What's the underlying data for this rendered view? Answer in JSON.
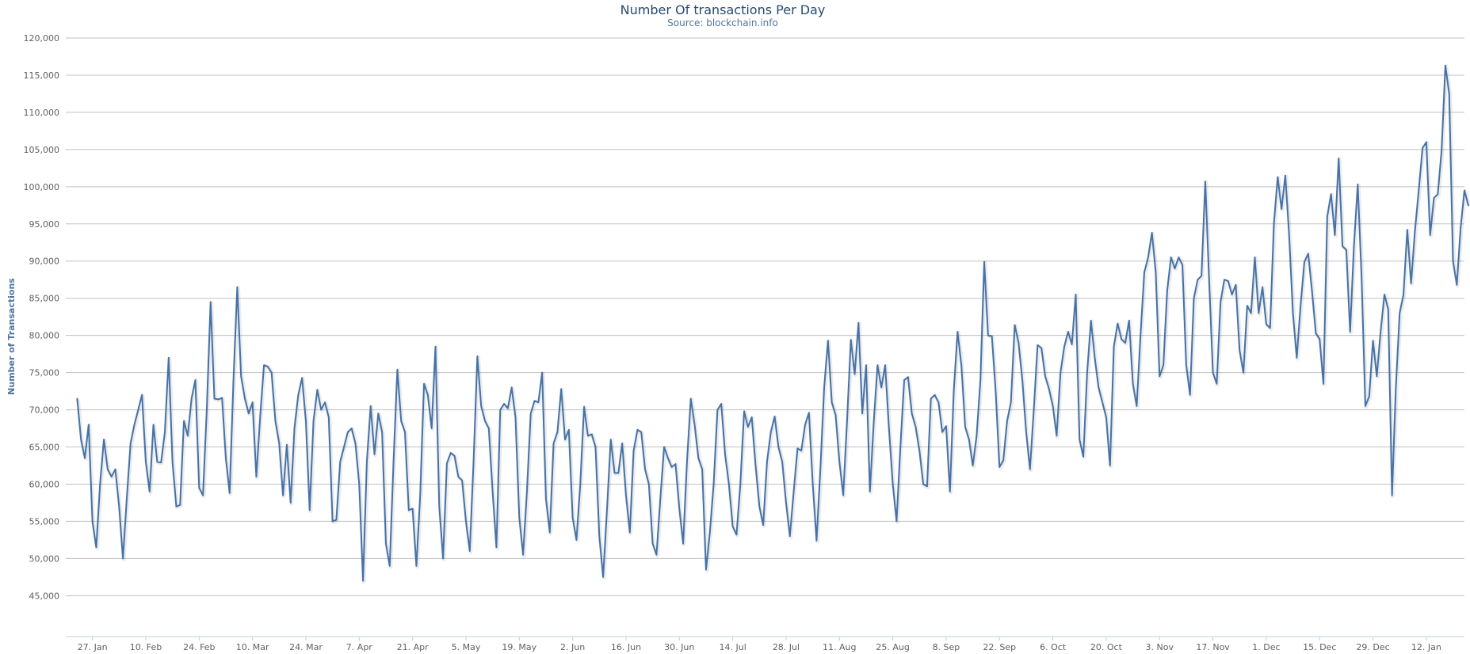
{
  "chart_data": {
    "type": "line",
    "title": "Number Of transactions Per Day",
    "subtitle": "Source: blockchain.info",
    "xlabel": "",
    "ylabel": "Number of Transactions",
    "ylim": [
      45000,
      120000
    ],
    "yticks": [
      45000,
      50000,
      55000,
      60000,
      65000,
      70000,
      75000,
      80000,
      85000,
      90000,
      95000,
      100000,
      105000,
      110000,
      115000,
      120000
    ],
    "ytick_labels": [
      "45,000",
      "50,000",
      "55,000",
      "60,000",
      "65,000",
      "70,000",
      "75,000",
      "80,000",
      "85,000",
      "90,000",
      "95,000",
      "100,000",
      "105,000",
      "110,000",
      "115,000",
      "120,000"
    ],
    "xlim": [
      "2013-01-20",
      "2014-01-22"
    ],
    "xticks": [
      {
        "label": "27. Jan",
        "date": "2013-01-27"
      },
      {
        "label": "10. Feb",
        "date": "2013-02-10"
      },
      {
        "label": "24. Feb",
        "date": "2013-02-24"
      },
      {
        "label": "10. Mar",
        "date": "2013-03-10"
      },
      {
        "label": "24. Mar",
        "date": "2013-03-24"
      },
      {
        "label": "7. Apr",
        "date": "2013-04-07"
      },
      {
        "label": "21. Apr",
        "date": "2013-04-21"
      },
      {
        "label": "5. May",
        "date": "2013-05-05"
      },
      {
        "label": "19. May",
        "date": "2013-05-19"
      },
      {
        "label": "2. Jun",
        "date": "2013-06-02"
      },
      {
        "label": "16. Jun",
        "date": "2013-06-16"
      },
      {
        "label": "30. Jun",
        "date": "2013-06-30"
      },
      {
        "label": "14. Jul",
        "date": "2013-07-14"
      },
      {
        "label": "28. Jul",
        "date": "2013-07-28"
      },
      {
        "label": "11. Aug",
        "date": "2013-08-11"
      },
      {
        "label": "25. Aug",
        "date": "2013-08-25"
      },
      {
        "label": "8. Sep",
        "date": "2013-09-08"
      },
      {
        "label": "22. Sep",
        "date": "2013-09-22"
      },
      {
        "label": "6. Oct",
        "date": "2013-10-06"
      },
      {
        "label": "20. Oct",
        "date": "2013-10-20"
      },
      {
        "label": "3. Nov",
        "date": "2013-11-03"
      },
      {
        "label": "17. Nov",
        "date": "2013-11-17"
      },
      {
        "label": "1. Dec",
        "date": "2013-12-01"
      },
      {
        "label": "15. Dec",
        "date": "2013-12-15"
      },
      {
        "label": "29. Dec",
        "date": "2013-12-29"
      },
      {
        "label": "12. Jan",
        "date": "2014-01-12"
      }
    ],
    "grid": true,
    "legend": "none",
    "line_color": "#4572a7",
    "series": [
      {
        "start": "2013-01-23",
        "step": "1 day",
        "values": [
          71500,
          66000,
          63500,
          68000,
          55000,
          51500,
          60000,
          66000,
          62000,
          61000,
          62000,
          57000,
          50000,
          58000,
          65500,
          68000,
          70000,
          72000,
          63000,
          59000,
          68000,
          63000,
          62900,
          67000,
          77000,
          63000,
          57000,
          57200,
          68500,
          66500,
          71500,
          74000,
          59500,
          58500,
          70000,
          84500,
          71500,
          71400,
          71600,
          63500,
          58800,
          74000,
          86500,
          74500,
          71500,
          69500,
          71000,
          61000,
          69000,
          76000,
          75800,
          75000,
          68500,
          65500,
          58500,
          65300,
          57500,
          67500,
          72000,
          74300,
          68500,
          56500,
          68500,
          72700,
          70000,
          71000,
          69000,
          55000,
          55200,
          63000,
          65000,
          67000,
          67500,
          65500,
          60000,
          47000,
          63000,
          70500,
          64000,
          69500,
          67000,
          52000,
          49000,
          63000,
          75400,
          68500,
          67000,
          56500,
          56700,
          49000,
          58500,
          73500,
          72000,
          67500,
          78500,
          57000,
          50000,
          62800,
          64200,
          63800,
          61000,
          60500,
          55000,
          51000,
          63000,
          77200,
          70500,
          68500,
          67500,
          59000,
          51500,
          70000,
          70800,
          70200,
          73000,
          69000,
          55500,
          50500,
          59000,
          69500,
          71200,
          71000,
          75000,
          58000,
          53500,
          65500,
          67000,
          72800,
          66000,
          67300,
          55500,
          52500,
          60000,
          70400,
          66500,
          66700,
          65000,
          53000,
          47500,
          56500,
          66000,
          61500,
          61500,
          65500,
          58500,
          53500,
          64500,
          67300,
          67000,
          62000,
          60000,
          52000,
          50500,
          58000,
          65000,
          63500,
          62300,
          62700,
          56700,
          52000,
          63000,
          71500,
          68000,
          63500,
          62000,
          48500,
          53500,
          60000,
          70000,
          70800,
          64000,
          60000,
          54300,
          53200,
          60000,
          69800,
          67700,
          69000,
          62500,
          57000,
          54500,
          63000,
          67000,
          69100,
          65000,
          63000,
          57500,
          53000,
          59000,
          64800,
          64500,
          68000,
          69600,
          60000,
          52400,
          62000,
          73000,
          79300,
          71000,
          69300,
          63000,
          58500,
          68500,
          79400,
          74800,
          81700,
          69500,
          76000,
          59000,
          68300,
          76000,
          73000,
          76000,
          67500,
          60000,
          55000,
          65000,
          74000,
          74400,
          69500,
          67700,
          64500,
          60000,
          59700,
          71500,
          72000,
          71000,
          67000,
          67800,
          59000,
          72500,
          80500,
          76000,
          67700,
          66000,
          62500,
          66500,
          74000,
          89900,
          80000,
          79900,
          72500,
          62300,
          63200,
          68500,
          71000,
          81400,
          79000,
          74000,
          67000,
          62000,
          70000,
          78700,
          78300,
          74500,
          72800,
          70500,
          66500,
          75000,
          78500,
          80500,
          78800,
          85500,
          66000,
          63700,
          75000,
          82000,
          77000,
          73000,
          71000,
          69000,
          62500,
          78500,
          81600,
          79500,
          79000,
          82000,
          73500,
          70500,
          80000,
          88500,
          90500,
          93800,
          88500,
          74500,
          76000,
          86000,
          90500,
          89000,
          90500,
          89500,
          76000,
          72000,
          85000,
          87500,
          88000,
          100700,
          87500,
          75000,
          73500,
          84500,
          87500,
          87300,
          85500,
          86800,
          78000,
          75000,
          84000,
          83000,
          90500,
          83000,
          86500,
          81500,
          81000,
          95000,
          101300,
          97000,
          101500,
          93500,
          83000,
          77000,
          84000,
          89900,
          91000,
          86000,
          80300,
          79500,
          73500,
          96000,
          99000,
          93500,
          103800,
          92000,
          91500,
          80500,
          92000,
          100300,
          88000,
          70500,
          71800,
          79300,
          74500,
          80500,
          85500,
          83500,
          58500,
          73000,
          83000,
          85500,
          94200,
          87000,
          94000,
          99500,
          105200,
          106000,
          93500,
          98500,
          99000,
          104800,
          116300,
          112500,
          90000,
          86800,
          94500,
          99500,
          97500
        ]
      }
    ]
  }
}
